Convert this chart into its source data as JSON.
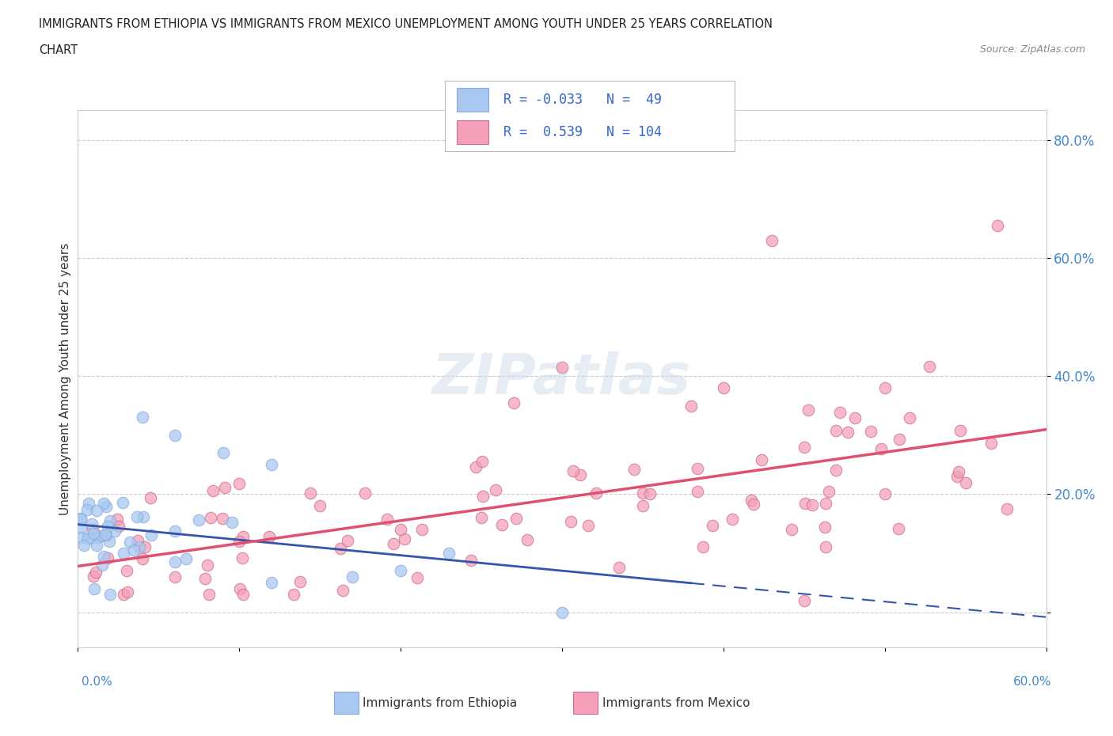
{
  "title_line1": "IMMIGRANTS FROM ETHIOPIA VS IMMIGRANTS FROM MEXICO UNEMPLOYMENT AMONG YOUTH UNDER 25 YEARS CORRELATION",
  "title_line2": "CHART",
  "source": "Source: ZipAtlas.com",
  "ylabel": "Unemployment Among Youth under 25 years",
  "xlim": [
    0,
    0.6
  ],
  "ylim": [
    -0.06,
    0.85
  ],
  "yticks": [
    0.0,
    0.2,
    0.4,
    0.6,
    0.8
  ],
  "ytick_labels": [
    "",
    "20.0%",
    "40.0%",
    "60.0%",
    "80.0%"
  ],
  "legend_ethiopia_R": -0.033,
  "legend_ethiopia_N": 49,
  "legend_mexico_R": 0.539,
  "legend_mexico_N": 104,
  "ethiopia_color": "#a8c8f0",
  "mexico_color": "#f5a0b8",
  "ethiopia_line_color": "#3355aa",
  "mexico_line_color": "#e05070",
  "background_color": "#ffffff"
}
